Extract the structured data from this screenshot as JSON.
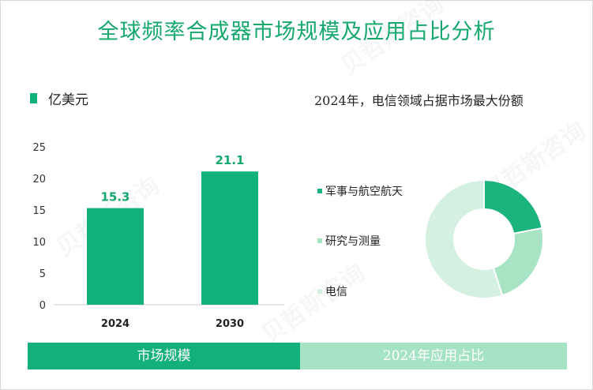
{
  "title": "全球频率合成器市场规模及应用占比分析",
  "unit_legend": "亿美元",
  "right_title": "2024年，电信领域占据市场最大份额",
  "bottom_tabs": [
    "市场规模",
    "2024年应用占比"
  ],
  "watermark": "贝哲斯咨询",
  "colors": {
    "title": "#14a86d",
    "bar": "#10b27a",
    "tab_left": "#14b07a",
    "tab_right": "#a6e3c4"
  },
  "chart_data": [
    {
      "type": "bar",
      "categories": [
        "2024",
        "2030"
      ],
      "values": [
        15.3,
        21.1
      ],
      "ylim": [
        0,
        25
      ],
      "yticks": [
        0,
        5,
        10,
        15,
        20,
        25
      ],
      "legend": "亿美元",
      "data_labels": [
        "15.3",
        "21.1"
      ],
      "color": "#10b27a"
    },
    {
      "type": "pie",
      "title": "2024年，电信领域占据市场最大份额",
      "labels": [
        "军事与航空航天",
        "研究与测量",
        "电信"
      ],
      "values": [
        22,
        23,
        55
      ],
      "colors": [
        "#1bb47c",
        "#a8e4c4",
        "#d3f0e1"
      ]
    }
  ]
}
